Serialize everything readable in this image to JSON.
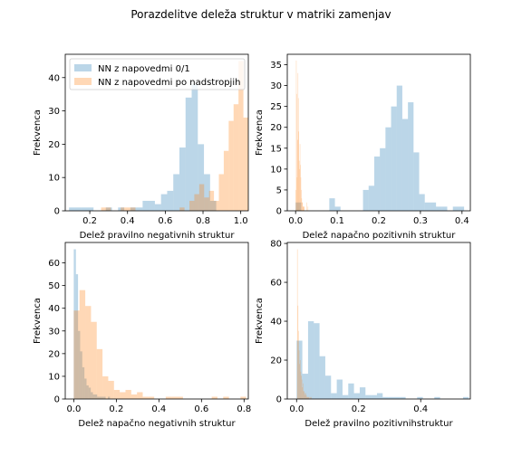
{
  "title": "Porazdelitve deleža struktur v matriki zamenjav",
  "colors": {
    "series0": "#1f77b4",
    "series1": "#ff7f0e"
  },
  "bar_alpha": 0.3,
  "chart_data": [
    {
      "type": "bar",
      "xlabel": "Delež pravilno negativnih struktur",
      "ylabel": "Frekvenca",
      "xlim": [
        0.07,
        1.04
      ],
      "ylim": [
        0,
        47
      ],
      "xticks": [
        "0.2",
        "0.4",
        "0.6",
        "0.8",
        "1.0"
      ],
      "xtick_values": [
        0.2,
        0.4,
        0.6,
        0.8,
        1.0
      ],
      "yticks": [
        "0",
        "10",
        "20",
        "30",
        "40"
      ],
      "ytick_values": [
        0,
        10,
        20,
        30,
        40
      ],
      "legend": {
        "placement": "top-left",
        "entries": [
          "NN z napovedmi 0/1",
          "NN z napovedmi po nadstropjih"
        ]
      },
      "series": [
        {
          "bin_start": 0.09,
          "bin_width": 0.0325,
          "counts": [
            1,
            1,
            1,
            1,
            0,
            0,
            1,
            0,
            1,
            0,
            1,
            1,
            3,
            3,
            2,
            5,
            6,
            11,
            19,
            34,
            38,
            20,
            11,
            3,
            0,
            0,
            0,
            0,
            0,
            0
          ]
        },
        {
          "bin_start": 0.26,
          "bin_width": 0.026,
          "counts": [
            1,
            1,
            0,
            0,
            1,
            1,
            1,
            0,
            0,
            0,
            0,
            0,
            0,
            0,
            0,
            0,
            1,
            0,
            3,
            5,
            8,
            4,
            6,
            3,
            11,
            18,
            27,
            32,
            45,
            28
          ]
        }
      ]
    },
    {
      "type": "bar",
      "xlabel": "Delež napačno pozitivnih struktur",
      "ylabel": "Frekvenca",
      "xlim": [
        -0.02,
        0.42
      ],
      "ylim": [
        0,
        37.5
      ],
      "xticks": [
        "0.0",
        "0.1",
        "0.2",
        "0.3",
        "0.4"
      ],
      "xtick_values": [
        0.0,
        0.1,
        0.2,
        0.3,
        0.4
      ],
      "yticks": [
        "0",
        "5",
        "10",
        "15",
        "20",
        "25",
        "30",
        "35"
      ],
      "ytick_values": [
        0,
        5,
        10,
        15,
        20,
        25,
        30,
        35
      ],
      "series": [
        {
          "bin_start": 0.0,
          "bin_width": 0.0135,
          "counts": [
            2,
            0,
            0,
            0,
            0,
            0,
            3,
            1,
            0,
            0,
            0,
            0,
            5,
            6,
            13,
            15,
            20,
            25,
            30,
            22,
            26,
            14,
            4,
            2,
            2,
            1,
            1,
            0,
            1,
            1
          ]
        },
        {
          "bin_start": 0.0,
          "bin_width": 0.001,
          "counts": [
            5,
            36,
            28,
            8,
            17,
            33,
            27,
            19,
            12,
            10,
            16,
            11,
            8,
            5,
            3,
            2,
            2,
            1,
            1,
            1,
            1,
            0,
            0,
            0,
            0,
            0,
            2,
            0,
            0,
            1
          ]
        }
      ]
    },
    {
      "type": "bar",
      "xlabel": "Delež napačno negativnih struktur",
      "ylabel": "Frekvenca",
      "xlim": [
        -0.04,
        0.82
      ],
      "ylim": [
        0,
        69
      ],
      "xticks": [
        "0.0",
        "0.2",
        "0.4",
        "0.6",
        "0.8"
      ],
      "xtick_values": [
        0.0,
        0.2,
        0.4,
        0.6,
        0.8
      ],
      "yticks": [
        "0",
        "10",
        "20",
        "30",
        "40",
        "50",
        "60"
      ],
      "ytick_values": [
        0,
        10,
        20,
        30,
        40,
        50,
        60
      ],
      "series": [
        {
          "bin_start": 0.0,
          "bin_width": 0.01,
          "counts": [
            66,
            55,
            30,
            21,
            14,
            9,
            6,
            5,
            3,
            2,
            2,
            1,
            1,
            1,
            1,
            0,
            1,
            0,
            0,
            0,
            0,
            0,
            0,
            0,
            0,
            0,
            0,
            0,
            0,
            0
          ]
        },
        {
          "bin_start": 0.0,
          "bin_width": 0.027,
          "counts": [
            39,
            48,
            41,
            34,
            22,
            10,
            8,
            4,
            3,
            4,
            2,
            3,
            1,
            1,
            0,
            0,
            1,
            1,
            1,
            0,
            0,
            0,
            0,
            0,
            1,
            0,
            1,
            0,
            0,
            1
          ]
        }
      ]
    },
    {
      "type": "bar",
      "xlabel": "Delež pravilno pozitivnihstruktur",
      "ylabel": "Frekvenca",
      "xlim": [
        -0.03,
        0.56
      ],
      "ylim": [
        0,
        80.5
      ],
      "xticks": [
        "0.0",
        "0.2",
        "0.4"
      ],
      "xtick_values": [
        0.0,
        0.2,
        0.4
      ],
      "yticks": [
        "0",
        "20",
        "40",
        "60",
        "80"
      ],
      "ytick_values": [
        0,
        20,
        40,
        60,
        80
      ],
      "series": [
        {
          "bin_start": 0.0,
          "bin_width": 0.0185,
          "counts": [
            30,
            13,
            40,
            39,
            22,
            12,
            3,
            10,
            2,
            8,
            3,
            6,
            2,
            2,
            3,
            1,
            1,
            1,
            1,
            0,
            0,
            1,
            0,
            0,
            1,
            0,
            0,
            0,
            0,
            1
          ]
        },
        {
          "bin_start": 0.0,
          "bin_width": 0.0018,
          "counts": [
            0,
            77,
            48,
            35,
            25,
            18,
            20,
            14,
            12,
            10,
            6,
            8,
            4,
            4,
            3,
            2,
            3,
            2,
            1,
            1,
            1,
            1,
            1,
            0,
            1,
            0,
            1,
            0,
            0,
            0
          ]
        }
      ]
    }
  ]
}
